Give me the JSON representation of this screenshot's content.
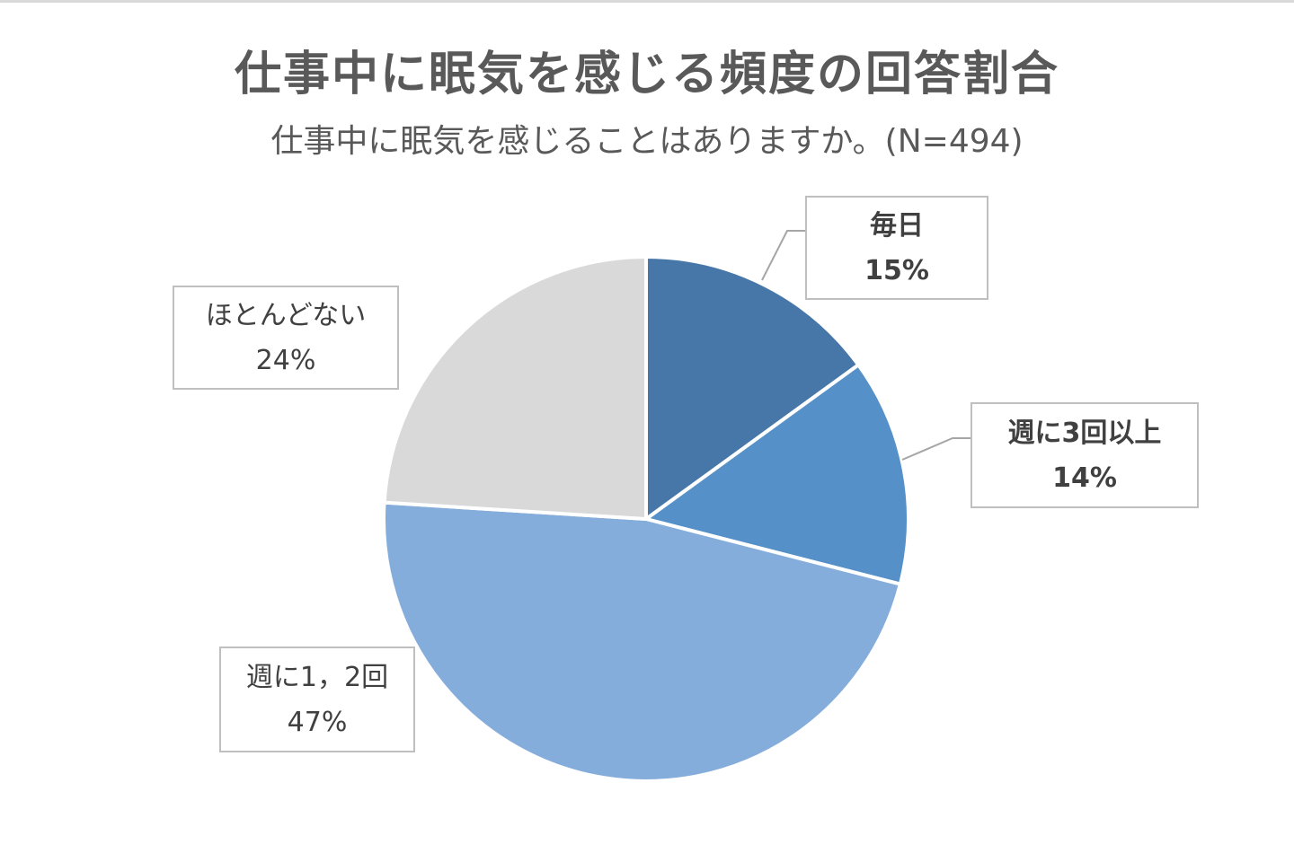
{
  "title": "仕事中に眠気を感じる頻度の回答割合",
  "subtitle": "仕事中に眠気を感じることはありますか。(N=494)",
  "chart_data": {
    "type": "pie",
    "title": "仕事中に眠気を感じる頻度の回答割合",
    "subtitle": "仕事中に眠気を感じることはありますか。(N=494)",
    "slices": [
      {
        "label": "毎日",
        "value": 15,
        "display": "15%",
        "color": "#4677a8"
      },
      {
        "label": "週に3回以上",
        "value": 14,
        "display": "14%",
        "color": "#5590c8"
      },
      {
        "label": "週に1，2回",
        "value": 47,
        "display": "47%",
        "color": "#85addb"
      },
      {
        "label": "ほとんどない",
        "value": 24,
        "display": "24%",
        "color": "#d9d9d9"
      }
    ],
    "start_angle": "12 o'clock",
    "direction": "clockwise",
    "legend": "none",
    "data_labels": "callouts"
  }
}
